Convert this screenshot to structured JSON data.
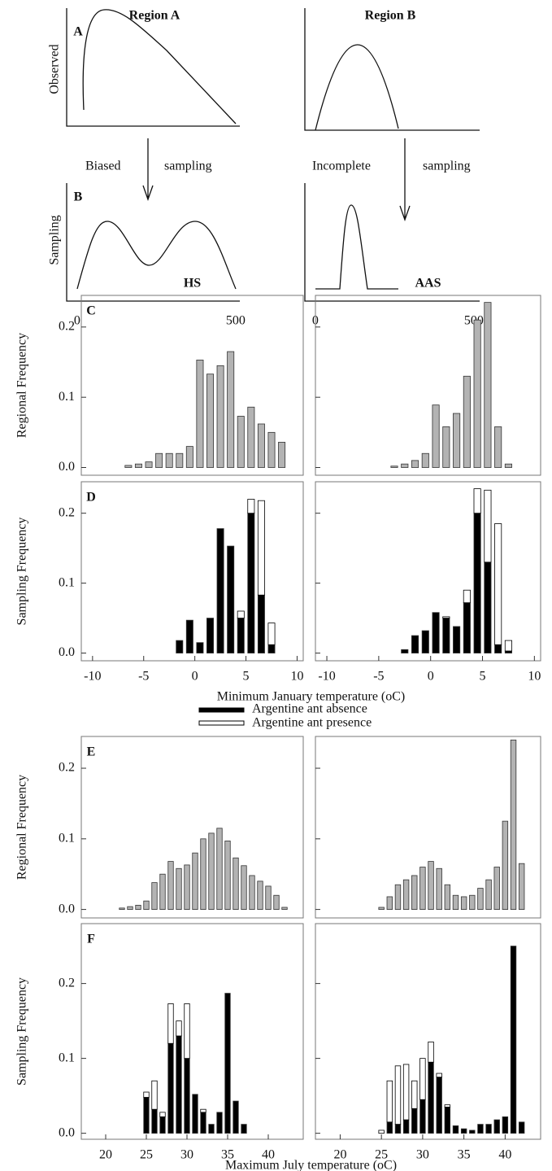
{
  "concept": {
    "titles": [
      "Region A",
      "Region B"
    ],
    "panels": [
      "A",
      "B"
    ],
    "ylabels": [
      "Observed",
      "Sampling"
    ],
    "notes": [
      [
        "Biased",
        "sampling"
      ],
      [
        "Incomplete",
        "sampling"
      ]
    ],
    "xlim": [
      -33,
      513
    ],
    "xticks": [
      0,
      500
    ]
  },
  "chart_data": [
    {
      "type": "bar",
      "panel": "C",
      "column": "HS",
      "ylabel": "Regional Frequency",
      "color": "#b3b3b3",
      "x": [
        -6.5,
        -5.5,
        -4.5,
        -3.5,
        -2.5,
        -1.5,
        -0.5,
        0.5,
        1.5,
        2.5,
        3.5,
        4.5,
        5.5,
        6.5,
        7.5,
        8.5
      ],
      "values": [
        0.003,
        0.005,
        0.008,
        0.02,
        0.02,
        0.02,
        0.03,
        0.153,
        0.133,
        0.145,
        0.165,
        0.073,
        0.086,
        0.062,
        0.05,
        0.036
      ],
      "xlim": [
        -11.1,
        10.6
      ],
      "ylim": [
        -0.011,
        0.245
      ],
      "yticks": [
        {
          "value": 0,
          "label": "0.0"
        },
        0.1,
        0.2
      ]
    },
    {
      "type": "bar",
      "column": "AAS",
      "color": "#b3b3b3",
      "x": [
        -3.5,
        -2.5,
        -1.5,
        -0.5,
        0.5,
        1.5,
        2.5,
        3.5,
        4.5,
        5.5,
        6.5,
        7.5
      ],
      "values": [
        0.002,
        0.005,
        0.01,
        0.02,
        0.089,
        0.058,
        0.077,
        0.13,
        0.21,
        0.235,
        0.058,
        0.005
      ],
      "xlim": [
        -11.1,
        10.6
      ],
      "ylim": [
        -0.011,
        0.245
      ]
    },
    {
      "type": "stacked_bar",
      "panel": "D",
      "ylabel": "Sampling Frequency",
      "xlabel": "Minimum January temperature (oC)",
      "x": [
        -1.5,
        -0.5,
        0.5,
        1.5,
        2.5,
        3.5,
        4.5,
        5.5,
        6.5,
        7.5
      ],
      "series": [
        {
          "name": "Argentine ant absence",
          "color": "#000000",
          "values": [
            0.018,
            0.047,
            0.015,
            0.05,
            0.178,
            0.153,
            0.05,
            0.2,
            0.083,
            0.012
          ]
        },
        {
          "name": "Argentine ant presence",
          "color": "#ffffff",
          "values": [
            0,
            0,
            0,
            0,
            0,
            0,
            0.01,
            0.02,
            0.135,
            0.031
          ]
        }
      ],
      "xlim": [
        -11.1,
        10.6
      ],
      "ylim": [
        -0.011,
        0.245
      ],
      "yticks": [
        {
          "value": 0,
          "label": "0.0"
        },
        0.1,
        0.2
      ],
      "xticks": [
        -10,
        -5,
        0,
        5,
        10
      ]
    },
    {
      "type": "stacked_bar",
      "x": [
        -2.5,
        -1.5,
        -0.5,
        0.5,
        1.5,
        2.5,
        3.5,
        4.5,
        5.5,
        6.5,
        7.5
      ],
      "series": [
        {
          "name": "Argentine ant absence",
          "color": "#000000",
          "values": [
            0.005,
            0.025,
            0.032,
            0.058,
            0.05,
            0.038,
            0.072,
            0.2,
            0.13,
            0.012,
            0.003
          ]
        },
        {
          "name": "Argentine ant presence",
          "color": "#ffffff",
          "values": [
            0,
            0,
            0,
            0,
            0.002,
            0,
            0.018,
            0.035,
            0.103,
            0.173,
            0.015
          ]
        }
      ],
      "xlim": [
        -11.1,
        10.6
      ],
      "ylim": [
        -0.011,
        0.245
      ],
      "xticks": [
        -10,
        -5,
        0,
        5,
        10
      ]
    },
    {
      "type": "bar",
      "panel": "E",
      "ylabel": "Regional Frequency",
      "color": "#b3b3b3",
      "x": [
        22,
        23,
        24,
        25,
        26,
        27,
        28,
        29,
        30,
        31,
        32,
        33,
        34,
        35,
        36,
        37,
        38,
        39,
        40,
        41,
        42
      ],
      "values": [
        0.002,
        0.004,
        0.006,
        0.012,
        0.038,
        0.05,
        0.068,
        0.058,
        0.063,
        0.08,
        0.1,
        0.108,
        0.115,
        0.097,
        0.073,
        0.062,
        0.048,
        0.04,
        0.033,
        0.02,
        0.003
      ],
      "xlim": [
        17,
        44.3
      ],
      "ylim": [
        -0.012,
        0.245
      ],
      "yticks": [
        {
          "value": 0,
          "label": "0.0"
        },
        0.1,
        0.2
      ]
    },
    {
      "type": "bar",
      "color": "#b3b3b3",
      "x": [
        25,
        26,
        27,
        28,
        29,
        30,
        31,
        32,
        33,
        34,
        35,
        36,
        37,
        38,
        39,
        40,
        41,
        42
      ],
      "values": [
        0.003,
        0.018,
        0.035,
        0.042,
        0.048,
        0.06,
        0.068,
        0.058,
        0.035,
        0.02,
        0.018,
        0.02,
        0.03,
        0.042,
        0.06,
        0.125,
        0.24,
        0.065
      ],
      "xlim": [
        17,
        44.3
      ],
      "ylim": [
        -0.012,
        0.245
      ]
    },
    {
      "type": "stacked_bar",
      "panel": "F",
      "ylabel": "Sampling Frequency",
      "xlabel": "Maximum July temperature (oC)",
      "x": [
        25,
        26,
        27,
        28,
        29,
        30,
        31,
        32,
        33,
        34,
        35,
        36,
        37
      ],
      "series": [
        {
          "name": "Argentine ant absence",
          "color": "#000000",
          "values": [
            0.048,
            0.032,
            0.022,
            0.12,
            0.13,
            0.1,
            0.052,
            0.028,
            0.012,
            0.028,
            0.187,
            0.043,
            0.012
          ]
        },
        {
          "name": "Argentine ant presence",
          "color": "#ffffff",
          "values": [
            0.007,
            0.038,
            0.006,
            0.053,
            0.02,
            0.073,
            0,
            0.004,
            0,
            0,
            0,
            0,
            0
          ]
        }
      ],
      "xlim": [
        17,
        44.3
      ],
      "ylim": [
        -0.008,
        0.28
      ],
      "yticks": [
        {
          "value": 0,
          "label": "0.0"
        },
        0.1,
        0.2
      ],
      "xticks": [
        20,
        25,
        30,
        35,
        40
      ]
    },
    {
      "type": "stacked_bar",
      "x": [
        25,
        26,
        27,
        28,
        29,
        30,
        31,
        32,
        33,
        34,
        35,
        36,
        37,
        38,
        39,
        40,
        41,
        42
      ],
      "series": [
        {
          "name": "Argentine ant absence",
          "color": "#000000",
          "values": [
            0,
            0.015,
            0.012,
            0.018,
            0.033,
            0.045,
            0.095,
            0.075,
            0.035,
            0.01,
            0.006,
            0.004,
            0.012,
            0.012,
            0.018,
            0.022,
            0.25,
            0.015
          ]
        },
        {
          "name": "Argentine ant presence",
          "color": "#ffffff",
          "values": [
            0.004,
            0.055,
            0.078,
            0.074,
            0.037,
            0.055,
            0.027,
            0.005,
            0.003,
            0,
            0,
            0,
            0,
            0,
            0,
            0,
            0,
            0
          ]
        }
      ],
      "xlim": [
        17,
        44.3
      ],
      "ylim": [
        -0.008,
        0.28
      ],
      "xticks": [
        20,
        25,
        30,
        35,
        40
      ]
    }
  ]
}
